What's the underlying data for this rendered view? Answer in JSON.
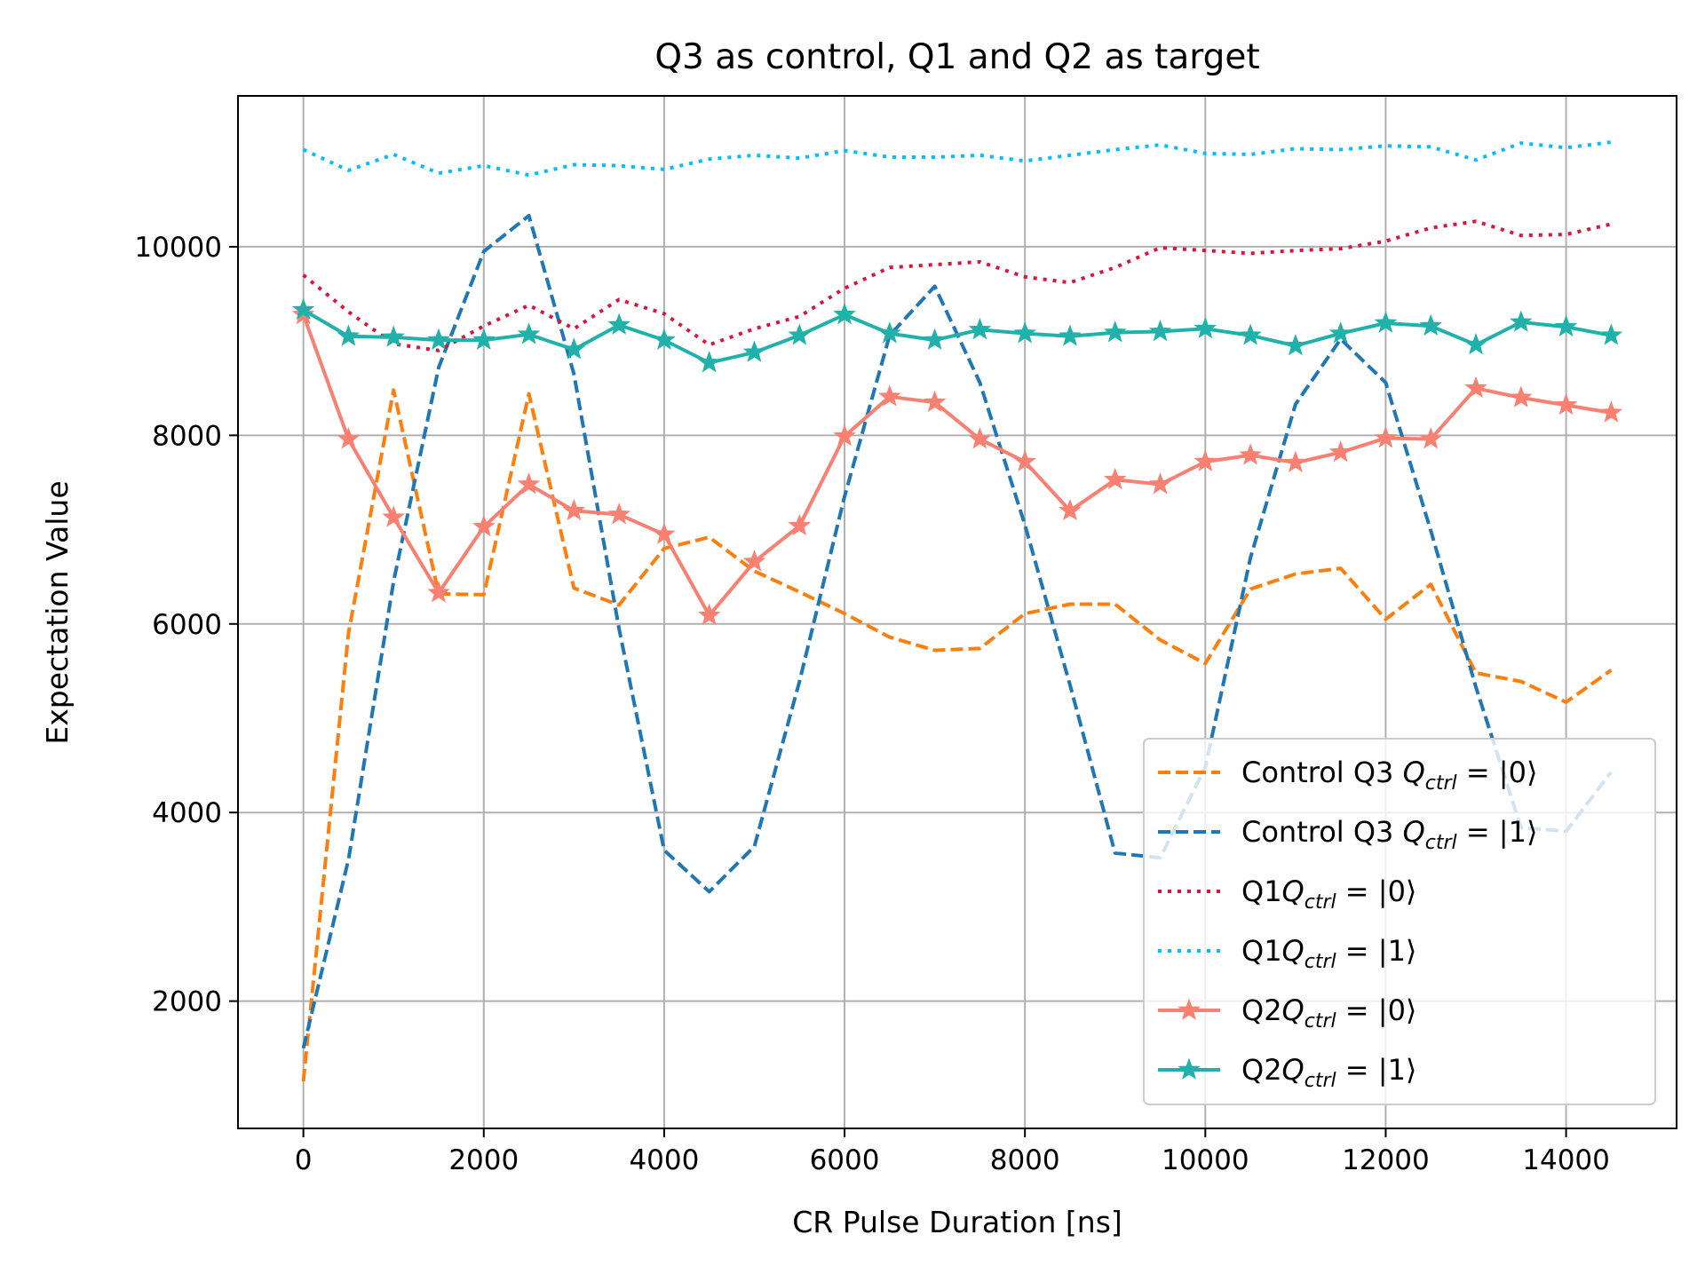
{
  "chart_data": {
    "type": "line",
    "title": "Q3 as control, Q1 and Q2 as target",
    "xlabel": "CR Pulse Duration [ns]",
    "ylabel": "Expectation Value",
    "xlim": [
      -725,
      15225
    ],
    "ylim": [
      650,
      11600
    ],
    "xticks": [
      0,
      2000,
      4000,
      6000,
      8000,
      10000,
      12000,
      14000
    ],
    "yticks": [
      2000,
      4000,
      6000,
      8000,
      10000
    ],
    "grid": true,
    "legend_position": "lower-right",
    "x": [
      0,
      500,
      1000,
      1500,
      2000,
      2500,
      3000,
      3500,
      4000,
      4500,
      5000,
      5500,
      6000,
      6500,
      7000,
      7500,
      8000,
      8500,
      9000,
      9500,
      10000,
      10500,
      11000,
      11500,
      12000,
      12500,
      13000,
      13500,
      14000,
      14500
    ],
    "series": [
      {
        "name": "Control Q3",
        "state": "|0⟩",
        "color": "#ff7f0e",
        "style": "dashed",
        "marker": "none",
        "values": [
          1150,
          5900,
          8480,
          6320,
          6310,
          8440,
          6380,
          6200,
          6800,
          6920,
          6560,
          6340,
          6110,
          5860,
          5720,
          5740,
          6110,
          6210,
          6210,
          5830,
          5580,
          6370,
          6530,
          6590,
          6050,
          6420,
          5480,
          5390,
          5170,
          5510
        ]
      },
      {
        "name": "Control Q3",
        "state": "|1⟩",
        "color": "#1f77b4",
        "style": "dashed",
        "marker": "none",
        "values": [
          1500,
          3500,
          6450,
          8720,
          9950,
          10330,
          8650,
          5950,
          3600,
          3160,
          3640,
          5390,
          7350,
          9060,
          9580,
          8560,
          7050,
          5350,
          3570,
          3520,
          4480,
          6700,
          8330,
          9020,
          8560,
          6990,
          5330,
          3840,
          3800,
          4430
        ]
      },
      {
        "name": "Q1",
        "state": "|0⟩",
        "color": "#dc143c",
        "style": "dotted",
        "marker": "none",
        "values": [
          9700,
          9310,
          8970,
          8900,
          9160,
          9380,
          9130,
          9440,
          9290,
          8960,
          9130,
          9260,
          9560,
          9780,
          9810,
          9840,
          9680,
          9620,
          9780,
          9990,
          9960,
          9930,
          9960,
          9980,
          10060,
          10200,
          10270,
          10120,
          10130,
          10240
        ]
      },
      {
        "name": "Q1",
        "state": "|1⟩",
        "color": "#00bfff",
        "style": "dotted",
        "marker": "none",
        "values": [
          11030,
          10810,
          10980,
          10780,
          10860,
          10760,
          10870,
          10860,
          10820,
          10930,
          10970,
          10940,
          11020,
          10950,
          10950,
          10970,
          10910,
          10970,
          11030,
          11080,
          10990,
          10980,
          11040,
          11030,
          11070,
          11060,
          10920,
          11100,
          11050,
          11110
        ]
      },
      {
        "name": "Q2",
        "state": "|0⟩",
        "color": "#fa8072",
        "style": "solid",
        "marker": "star",
        "values": [
          9280,
          7960,
          7130,
          6330,
          7030,
          7480,
          7200,
          7160,
          6950,
          6090,
          6660,
          7040,
          7990,
          8410,
          8350,
          7960,
          7720,
          7200,
          7530,
          7480,
          7720,
          7790,
          7710,
          7820,
          7970,
          7960,
          8500,
          8400,
          8320,
          8240
        ]
      },
      {
        "name": "Q2",
        "state": "|1⟩",
        "color": "#20b2aa",
        "style": "solid",
        "marker": "star",
        "values": [
          9330,
          9050,
          9040,
          9010,
          9010,
          9070,
          8910,
          9170,
          9010,
          8770,
          8880,
          9060,
          9280,
          9080,
          9010,
          9120,
          9080,
          9050,
          9090,
          9100,
          9130,
          9060,
          8950,
          9080,
          9190,
          9160,
          8960,
          9200,
          9150,
          9060
        ]
      }
    ]
  }
}
